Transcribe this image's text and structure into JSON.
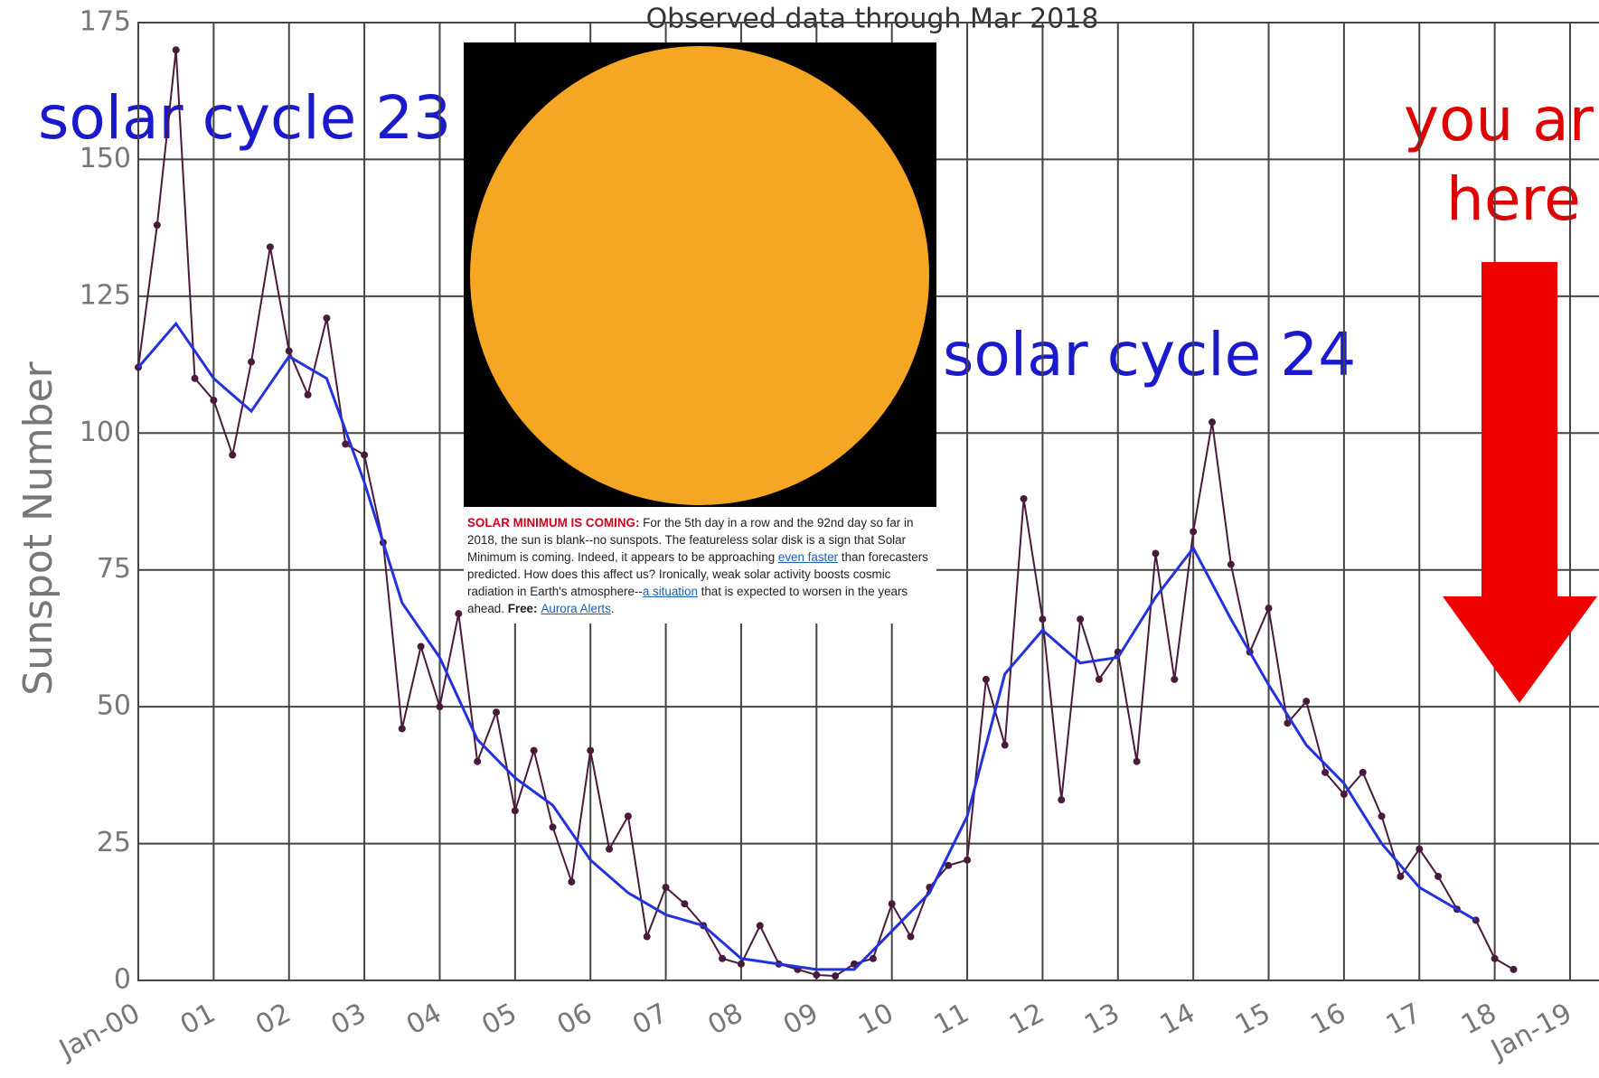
{
  "chart_data": {
    "type": "line",
    "subtitle": "Observed data through Mar 2018",
    "ylabel": "Sunspot Number",
    "xlim": [
      2000,
      2019
    ],
    "ylim": [
      0,
      175
    ],
    "yticks": [
      0,
      25,
      50,
      75,
      100,
      125,
      150,
      175
    ],
    "xticks": [
      {
        "value": 2000,
        "label": "Jan-00"
      },
      {
        "value": 2001,
        "label": "01"
      },
      {
        "value": 2002,
        "label": "02"
      },
      {
        "value": 2003,
        "label": "03"
      },
      {
        "value": 2004,
        "label": "04"
      },
      {
        "value": 2005,
        "label": "05"
      },
      {
        "value": 2006,
        "label": "06"
      },
      {
        "value": 2007,
        "label": "07"
      },
      {
        "value": 2008,
        "label": "08"
      },
      {
        "value": 2009,
        "label": "09"
      },
      {
        "value": 2010,
        "label": "10"
      },
      {
        "value": 2011,
        "label": "11"
      },
      {
        "value": 2012,
        "label": "12"
      },
      {
        "value": 2013,
        "label": "13"
      },
      {
        "value": 2014,
        "label": "14"
      },
      {
        "value": 2015,
        "label": "15"
      },
      {
        "value": 2016,
        "label": "16"
      },
      {
        "value": 2017,
        "label": "17"
      },
      {
        "value": 2018,
        "label": "18"
      },
      {
        "value": 2019,
        "label": "Jan-19"
      }
    ],
    "grid": true,
    "series": [
      {
        "color": "#4a1a3a",
        "markers": true,
        "x": [
          2000,
          2000.25,
          2000.5,
          2000.75,
          2001,
          2001.25,
          2001.5,
          2001.75,
          2002,
          2002.25,
          2002.5,
          2002.75,
          2003,
          2003.25,
          2003.5,
          2003.75,
          2004,
          2004.25,
          2004.5,
          2004.75,
          2005,
          2005.25,
          2005.5,
          2005.75,
          2006,
          2006.25,
          2006.5,
          2006.75,
          2007,
          2007.25,
          2007.5,
          2007.75,
          2008,
          2008.25,
          2008.5,
          2008.75,
          2009,
          2009.25,
          2009.5,
          2009.75,
          2010,
          2010.25,
          2010.5,
          2010.75,
          2011,
          2011.25,
          2011.5,
          2011.75,
          2012,
          2012.25,
          2012.5,
          2012.75,
          2013,
          2013.25,
          2013.5,
          2013.75,
          2014,
          2014.25,
          2014.5,
          2014.75,
          2015,
          2015.25,
          2015.5,
          2015.75,
          2016,
          2016.25,
          2016.5,
          2016.75,
          2017,
          2017.25,
          2017.5,
          2017.75,
          2018,
          2018.25
        ],
        "values": [
          112,
          138,
          170,
          110,
          106,
          96,
          113,
          134,
          115,
          107,
          121,
          98,
          96,
          80,
          46,
          61,
          50,
          67,
          40,
          49,
          31,
          42,
          28,
          18,
          42,
          24,
          30,
          8,
          17,
          14,
          10,
          4,
          3,
          10,
          3,
          2,
          1,
          0.8,
          3,
          4,
          14,
          8,
          17,
          21,
          22,
          55,
          43,
          88,
          66,
          33,
          66,
          55,
          60,
          40,
          78,
          55,
          82,
          102,
          76,
          60,
          68,
          47,
          51,
          38,
          34,
          38,
          30,
          19,
          24,
          19,
          13,
          11,
          4,
          2
        ]
      },
      {
        "color": "#2233dd",
        "markers": false,
        "x": [
          2000,
          2000.5,
          2001,
          2001.5,
          2002,
          2002.5,
          2003,
          2003.5,
          2004,
          2004.5,
          2005,
          2005.5,
          2006,
          2006.5,
          2007,
          2007.5,
          2008,
          2008.5,
          2009,
          2009.5,
          2010,
          2010.5,
          2011,
          2011.5,
          2012,
          2012.5,
          2013,
          2013.5,
          2014,
          2014.5,
          2015,
          2015.5,
          2016,
          2016.5,
          2017,
          2017.5,
          2017.75
        ],
        "values": [
          112,
          120,
          110,
          104,
          114,
          110,
          91,
          69,
          59,
          44,
          37,
          32,
          22,
          16,
          12,
          10,
          4,
          3,
          2,
          2,
          9,
          16,
          30,
          56,
          64,
          58,
          59,
          70,
          79,
          66,
          54,
          43,
          36,
          25,
          17,
          13,
          11
        ]
      }
    ],
    "annotations": [
      {
        "text": "solar cycle 23",
        "color": "#1a1acc"
      },
      {
        "text": "solar cycle 24",
        "color": "#1a1acc"
      },
      {
        "text": "you ar",
        "color": "#e00000"
      },
      {
        "text": "here",
        "color": "#e00000"
      }
    ]
  },
  "inset": {
    "headline": "SOLAR MINIMUM IS COMING:",
    "text_1": " For the 5th day in a row and the 92nd day so far in 2018, the sun is blank--no sunspots. The featureless solar disk is a sign that Solar Minimum is coming. Indeed, it appears to be approaching ",
    "link_1": "even faster",
    "text_2": " than forecasters predicted. How does this affect us? Ironically, weak solar activity boosts cosmic radiation in Earth's atmosphere--",
    "link_2": "a situation",
    "text_3": " that is expected to worsen in the years ahead. ",
    "bold": "Free:",
    "link_3": "Aurora Alerts",
    "text_4": "."
  }
}
